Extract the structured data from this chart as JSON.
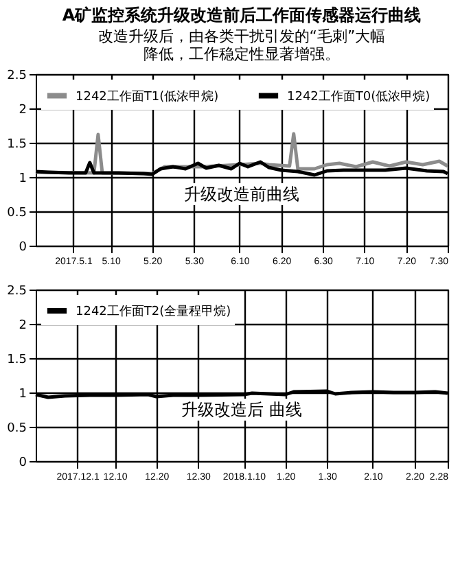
{
  "chart_data": [
    {
      "type": "line",
      "title": "A矿监控系统升级改造前后工作面传感器运行曲线",
      "subtitle": "　　改造升级后，由各类干扰引发的“毛刺”大幅降低，工作稳定性显著增强。",
      "annotations": [
        "升级改造前曲线"
      ],
      "series": [
        {
          "name": "1242工作面T1(低浓甲烷)",
          "color": "#8c8c8c",
          "x": [
            "2017-04-22",
            "2017-05-06",
            "2017-05-07",
            "2017-05-08",
            "2017-05-20",
            "2017-05-23",
            "2017-06-01",
            "2017-06-10",
            "2017-06-15",
            "2017-06-17",
            "2017-06-22",
            "2017-06-23",
            "2017-06-24",
            "2017-06-28",
            "2017-07-01",
            "2017-07-04",
            "2017-07-08",
            "2017-07-12",
            "2017-07-16",
            "2017-07-20",
            "2017-07-24",
            "2017-07-28",
            "2017-07-30"
          ],
          "values": [
            1.07,
            1.06,
            1.62,
            1.06,
            1.05,
            1.15,
            1.15,
            1.18,
            1.2,
            1.18,
            1.16,
            1.63,
            1.12,
            1.12,
            1.18,
            1.2,
            1.15,
            1.22,
            1.16,
            1.22,
            1.18,
            1.23,
            1.16
          ]
        },
        {
          "name": "1242工作面T0(低浓甲烷)",
          "color": "#000000",
          "x": [
            "2017-04-22",
            "2017-04-25",
            "2017-04-30",
            "2017-05-04",
            "2017-05-05",
            "2017-05-06",
            "2017-05-12",
            "2017-05-18",
            "2017-05-20",
            "2017-05-22",
            "2017-05-25",
            "2017-05-28",
            "2017-05-31",
            "2017-06-02",
            "2017-06-05",
            "2017-06-08",
            "2017-06-10",
            "2017-06-12",
            "2017-06-15",
            "2017-06-17",
            "2017-06-20",
            "2017-06-24",
            "2017-06-28",
            "2017-07-01",
            "2017-07-05",
            "2017-07-10",
            "2017-07-15",
            "2017-07-20",
            "2017-07-25",
            "2017-07-29",
            "2017-07-30"
          ],
          "values": [
            1.08,
            1.07,
            1.06,
            1.06,
            1.21,
            1.06,
            1.06,
            1.05,
            1.04,
            1.12,
            1.15,
            1.12,
            1.2,
            1.13,
            1.17,
            1.12,
            1.2,
            1.15,
            1.22,
            1.14,
            1.1,
            1.08,
            1.03,
            1.09,
            1.1,
            1.1,
            1.1,
            1.13,
            1.09,
            1.08,
            1.05
          ]
        }
      ],
      "xlim": [
        "2017-04-22",
        "2017-07-30"
      ],
      "xticks": [
        {
          "value": "2017-05-01",
          "label": "2017.5.1"
        },
        {
          "value": "2017-05-10",
          "label": "5.10"
        },
        {
          "value": "2017-05-20",
          "label": "5.20"
        },
        {
          "value": "2017-05-30",
          "label": "5.30"
        },
        {
          "value": "2017-06-10",
          "label": "6.10"
        },
        {
          "value": "2017-06-20",
          "label": "6.20"
        },
        {
          "value": "2017-06-30",
          "label": "6.30"
        },
        {
          "value": "2017-07-10",
          "label": "7.10"
        },
        {
          "value": "2017-07-20",
          "label": "7.20"
        },
        {
          "value": "2017-07-30",
          "label": "7.30"
        }
      ],
      "ylim": [
        0,
        2.5
      ],
      "yticks": [
        0,
        0.5,
        1,
        1.5,
        2,
        2.5
      ],
      "grid": true,
      "legend": "top left",
      "line_style": "solid",
      "marker": "none"
    },
    {
      "type": "line",
      "annotations": [
        "升级改造后 曲线"
      ],
      "series": [
        {
          "name": "1242工作面T2(全量程甲烷)",
          "color": "#000000",
          "x": [
            "2017-11-21",
            "2017-11-24",
            "2017-11-28",
            "2017-12-04",
            "2017-12-10",
            "2017-12-18",
            "2017-12-20",
            "2017-12-24",
            "2017-12-30",
            "2018-01-10",
            "2018-01-12",
            "2018-01-20",
            "2018-01-22",
            "2018-01-30",
            "2018-02-01",
            "2018-02-05",
            "2018-02-10",
            "2018-02-15",
            "2018-02-20",
            "2018-02-25",
            "2018-02-28"
          ],
          "values": [
            0.97,
            0.93,
            0.95,
            0.96,
            0.96,
            0.97,
            0.94,
            0.96,
            0.96,
            0.97,
            0.99,
            0.97,
            1.01,
            1.02,
            0.98,
            1.0,
            1.01,
            1.0,
            1.0,
            1.01,
            0.99
          ]
        }
      ],
      "xlim": [
        "2017-11-21",
        "2018-02-28"
      ],
      "xticks": [
        {
          "value": "2017-12-01",
          "label": "2017.12.1"
        },
        {
          "value": "2017-12-10",
          "label": "12.10"
        },
        {
          "value": "2017-12-20",
          "label": "12.20"
        },
        {
          "value": "2017-12-30",
          "label": "12.30"
        },
        {
          "value": "2018-01-10",
          "label": "2018.1.10"
        },
        {
          "value": "2018-01-20",
          "label": "1.20"
        },
        {
          "value": "2018-01-30",
          "label": "1.30"
        },
        {
          "value": "2018-02-10",
          "label": "2.10"
        },
        {
          "value": "2018-02-20",
          "label": "2.20"
        },
        {
          "value": "2018-02-28",
          "label": "2.28"
        }
      ],
      "ylim": [
        0,
        2.5
      ],
      "yticks": [
        0,
        0.5,
        1,
        1.5,
        2,
        2.5
      ],
      "grid": true,
      "legend": "top left",
      "line_style": "solid",
      "marker": "none"
    }
  ]
}
